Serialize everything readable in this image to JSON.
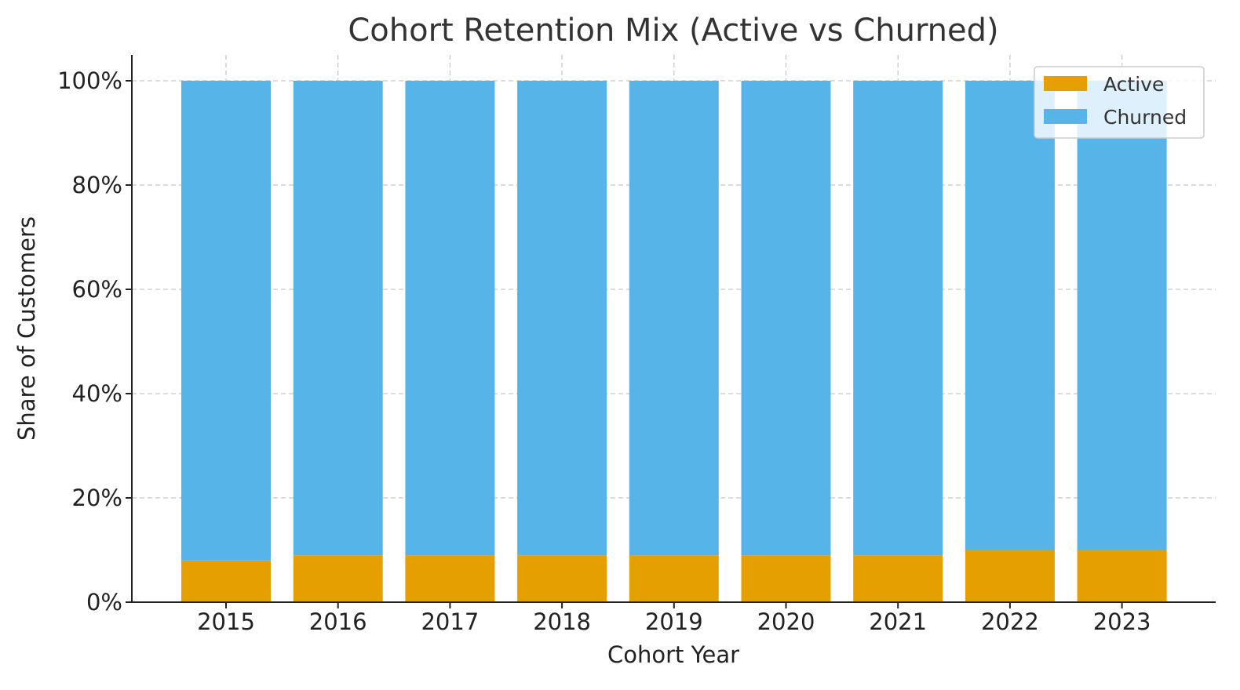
{
  "chart_data": {
    "type": "bar",
    "stacked": true,
    "title": "Cohort Retention Mix (Active vs Churned)",
    "xlabel": "Cohort Year",
    "ylabel": "Share of Customers",
    "categories": [
      "2015",
      "2016",
      "2017",
      "2018",
      "2019",
      "2020",
      "2021",
      "2022",
      "2023"
    ],
    "series": [
      {
        "name": "Active",
        "color": "#E69F00",
        "values": [
          8,
          9,
          9,
          9,
          9,
          9,
          9,
          10,
          10
        ]
      },
      {
        "name": "Churned",
        "color": "#56B4E9",
        "values": [
          92,
          91,
          91,
          91,
          91,
          91,
          91,
          90,
          90
        ]
      }
    ],
    "ylim": [
      0,
      105
    ],
    "yticks": [
      0,
      20,
      40,
      60,
      80,
      100
    ],
    "ytick_labels": [
      "0%",
      "20%",
      "40%",
      "60%",
      "80%",
      "100%"
    ],
    "grid": true,
    "legend_position": "top-right"
  }
}
